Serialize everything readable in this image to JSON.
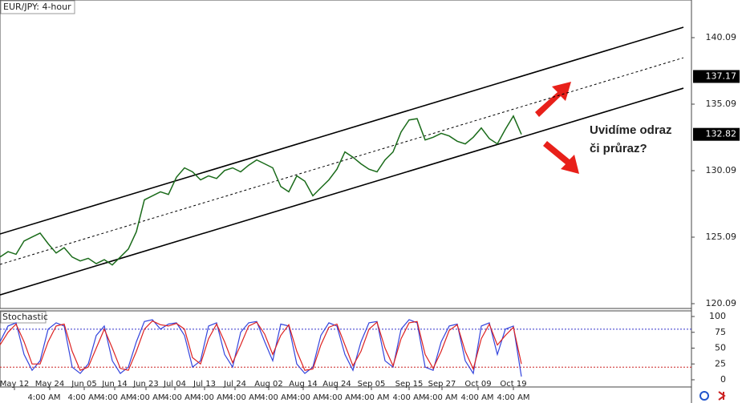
{
  "chart_data": [
    {
      "type": "line",
      "title": "EUR/JPY: 4-hour",
      "annotation": [
        "Uvidíme odraz",
        "či průraz?"
      ],
      "xlim": [
        0,
        86.2
      ],
      "xticks": [
        {
          "value": 1.8,
          "label": "May 12"
        },
        {
          "value": 6.2,
          "label": "May 24"
        },
        {
          "value": 10.5,
          "label": "Jun 05"
        },
        {
          "value": 14.3,
          "label": "Jun 14"
        },
        {
          "value": 18.2,
          "label": "Jun 23"
        },
        {
          "value": 21.8,
          "label": "Jul 04"
        },
        {
          "value": 25.5,
          "label": "Jul 13"
        },
        {
          "value": 29.3,
          "label": "Jul 24"
        },
        {
          "value": 33.5,
          "label": "Aug 02"
        },
        {
          "value": 37.8,
          "label": "Aug 14"
        },
        {
          "value": 42,
          "label": "Aug 24"
        },
        {
          "value": 46.3,
          "label": "Sep 05"
        },
        {
          "value": 51,
          "label": "Sep 15"
        },
        {
          "value": 55.1,
          "label": "Sep 27"
        },
        {
          "value": 59.6,
          "label": "Oct 09"
        },
        {
          "value": 64,
          "label": "Oct 19"
        }
      ],
      "time_labels": [
        {
          "value": 5.5,
          "label": "4:00 AM"
        },
        {
          "value": 10.5,
          "label": "4:00 AM"
        },
        {
          "value": 14.5,
          "label": "4:00 AM"
        },
        {
          "value": 18.5,
          "label": "4:00 AM"
        },
        {
          "value": 22.5,
          "label": "4:00 AM"
        },
        {
          "value": 26.5,
          "label": "4:00 AM"
        },
        {
          "value": 30.5,
          "label": "4:00 AM"
        },
        {
          "value": 34.5,
          "label": "4:00 AM"
        },
        {
          "value": 38.5,
          "label": "4:00 AM"
        },
        {
          "value": 42.5,
          "label": "4:00 AM"
        },
        {
          "value": 46.5,
          "label": "4:00 AM"
        },
        {
          "value": 51,
          "label": "4:00 AM"
        },
        {
          "value": 55,
          "label": "4:00 AM"
        },
        {
          "value": 59.5,
          "label": "4:00 AM"
        },
        {
          "value": 64,
          "label": "4:00 AM"
        }
      ],
      "ylim": [
        119.73,
        142.92
      ],
      "yticks": [
        120.09,
        125.09,
        130.09,
        135.09,
        140.09
      ],
      "price_markers": [
        137.17,
        132.82
      ],
      "channel": {
        "x": [
          0,
          85.2
        ],
        "upper": [
          125.33,
          140.87
        ],
        "middle": [
          123.04,
          138.58
        ],
        "lower": [
          120.75,
          136.29
        ]
      },
      "color": "#1a6b1a",
      "values": [
        123.6,
        124.0,
        123.8,
        124.8,
        125.1,
        125.4,
        124.6,
        123.9,
        124.3,
        123.6,
        123.3,
        123.5,
        123.1,
        123.4,
        123.0,
        123.6,
        124.2,
        125.5,
        127.9,
        128.2,
        128.5,
        128.3,
        129.6,
        130.3,
        130.0,
        129.4,
        129.7,
        129.5,
        130.1,
        130.3,
        130.0,
        130.5,
        130.9,
        130.6,
        130.3,
        128.9,
        128.5,
        129.7,
        129.3,
        128.2,
        128.8,
        129.4,
        130.2,
        131.5,
        131.1,
        130.6,
        130.2,
        130.0,
        130.9,
        131.5,
        133.0,
        133.9,
        134.0,
        132.4,
        132.6,
        132.9,
        132.7,
        132.3,
        132.1,
        132.6,
        133.3,
        132.5,
        132.1,
        133.2,
        134.2,
        132.82
      ]
    },
    {
      "type": "line",
      "title": "Stochastic",
      "ylim": [
        -11.4,
        108.9
      ],
      "yticks": [
        0,
        25,
        50,
        75,
        100
      ],
      "levels": [
        {
          "value": 80,
          "color": "#3333cc"
        },
        {
          "value": 20,
          "color": "#cc2222"
        }
      ],
      "series": [
        {
          "color": "#3344dd",
          "values": [
            60,
            85,
            90,
            40,
            15,
            30,
            80,
            90,
            85,
            20,
            10,
            25,
            70,
            85,
            30,
            10,
            20,
            60,
            92,
            95,
            80,
            88,
            90,
            70,
            20,
            30,
            85,
            90,
            40,
            20,
            75,
            90,
            92,
            60,
            30,
            88,
            85,
            25,
            10,
            20,
            70,
            90,
            85,
            40,
            15,
            60,
            90,
            92,
            30,
            20,
            80,
            95,
            90,
            20,
            15,
            60,
            85,
            88,
            30,
            10,
            85,
            90,
            40,
            80,
            85,
            5
          ]
        },
        {
          "color": "#dd2222",
          "values": [
            55,
            75,
            88,
            60,
            25,
            25,
            60,
            85,
            88,
            45,
            15,
            20,
            50,
            80,
            50,
            18,
            15,
            45,
            80,
            93,
            87,
            85,
            89,
            80,
            35,
            25,
            65,
            88,
            60,
            27,
            55,
            85,
            91,
            72,
            40,
            70,
            87,
            45,
            15,
            17,
            55,
            83,
            88,
            55,
            22,
            45,
            80,
            91,
            50,
            22,
            65,
            90,
            92,
            40,
            18,
            45,
            78,
            87,
            45,
            17,
            65,
            88,
            55,
            70,
            83,
            25
          ]
        }
      ]
    }
  ]
}
